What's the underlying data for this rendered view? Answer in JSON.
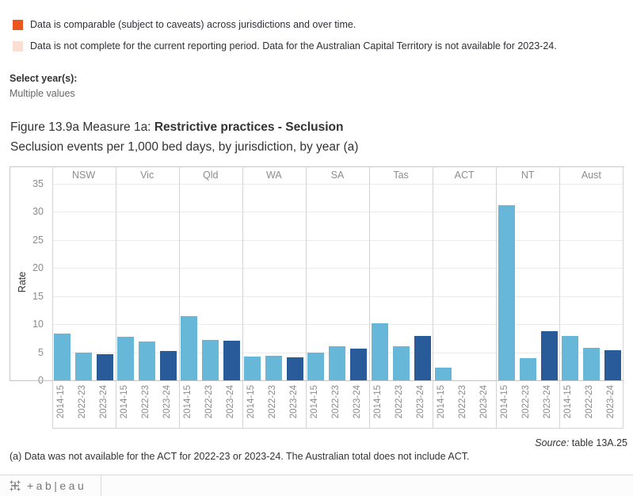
{
  "legend": {
    "items": [
      {
        "label": "Data is comparable (subject to caveats) across jurisdictions and over time.",
        "color": "#ea561c"
      },
      {
        "label": "Data is not complete for the current reporting period. Data for the Australian Capital Territory is not available for 2023-24.",
        "color": "#fbdfd5"
      }
    ]
  },
  "filter": {
    "label": "Select year(s):",
    "value": "Multiple values"
  },
  "title": {
    "prefix": "Figure 13.9a Measure 1a: ",
    "bold": "Restrictive practices - Seclusion",
    "subtitle": "Seclusion events per 1,000 bed days, by jurisdiction, by year (a)"
  },
  "chart_data": {
    "type": "bar",
    "title": "Figure 13.9a Measure 1a: Restrictive practices - Seclusion",
    "subtitle": "Seclusion events per 1,000 bed days, by jurisdiction, by year (a)",
    "xlabel": "",
    "ylabel": "Rate",
    "ylim": [
      0,
      35
    ],
    "yticks": [
      0,
      5,
      10,
      15,
      20,
      25,
      30,
      35
    ],
    "grid": true,
    "categories": [
      "NSW",
      "Vic",
      "Qld",
      "WA",
      "SA",
      "Tas",
      "ACT",
      "NT",
      "Aust"
    ],
    "series": [
      {
        "name": "2014-15",
        "color": "#67b8d8",
        "values": [
          8.3,
          7.7,
          11.4,
          4.2,
          5.0,
          10.2,
          2.3,
          31.2,
          7.9
        ]
      },
      {
        "name": "2022-23",
        "color": "#67b8d8",
        "values": [
          5.0,
          6.9,
          7.2,
          4.4,
          6.1,
          6.1,
          null,
          3.9,
          5.8
        ]
      },
      {
        "name": "2023-24",
        "color": "#295a99",
        "values": [
          4.7,
          5.2,
          7.0,
          4.1,
          5.6,
          7.9,
          null,
          8.8,
          5.4
        ]
      }
    ],
    "notes": "No bars for ACT in 2022-23 and 2023-24 (data not available)"
  },
  "source": {
    "label": "Source:",
    "text": " table 13A.25"
  },
  "footnote": "(a) Data was not available for the ACT for 2022-23 or 2023-24. The Australian total does not include ACT.",
  "footer": {
    "logo_text": "+ab|eau"
  }
}
